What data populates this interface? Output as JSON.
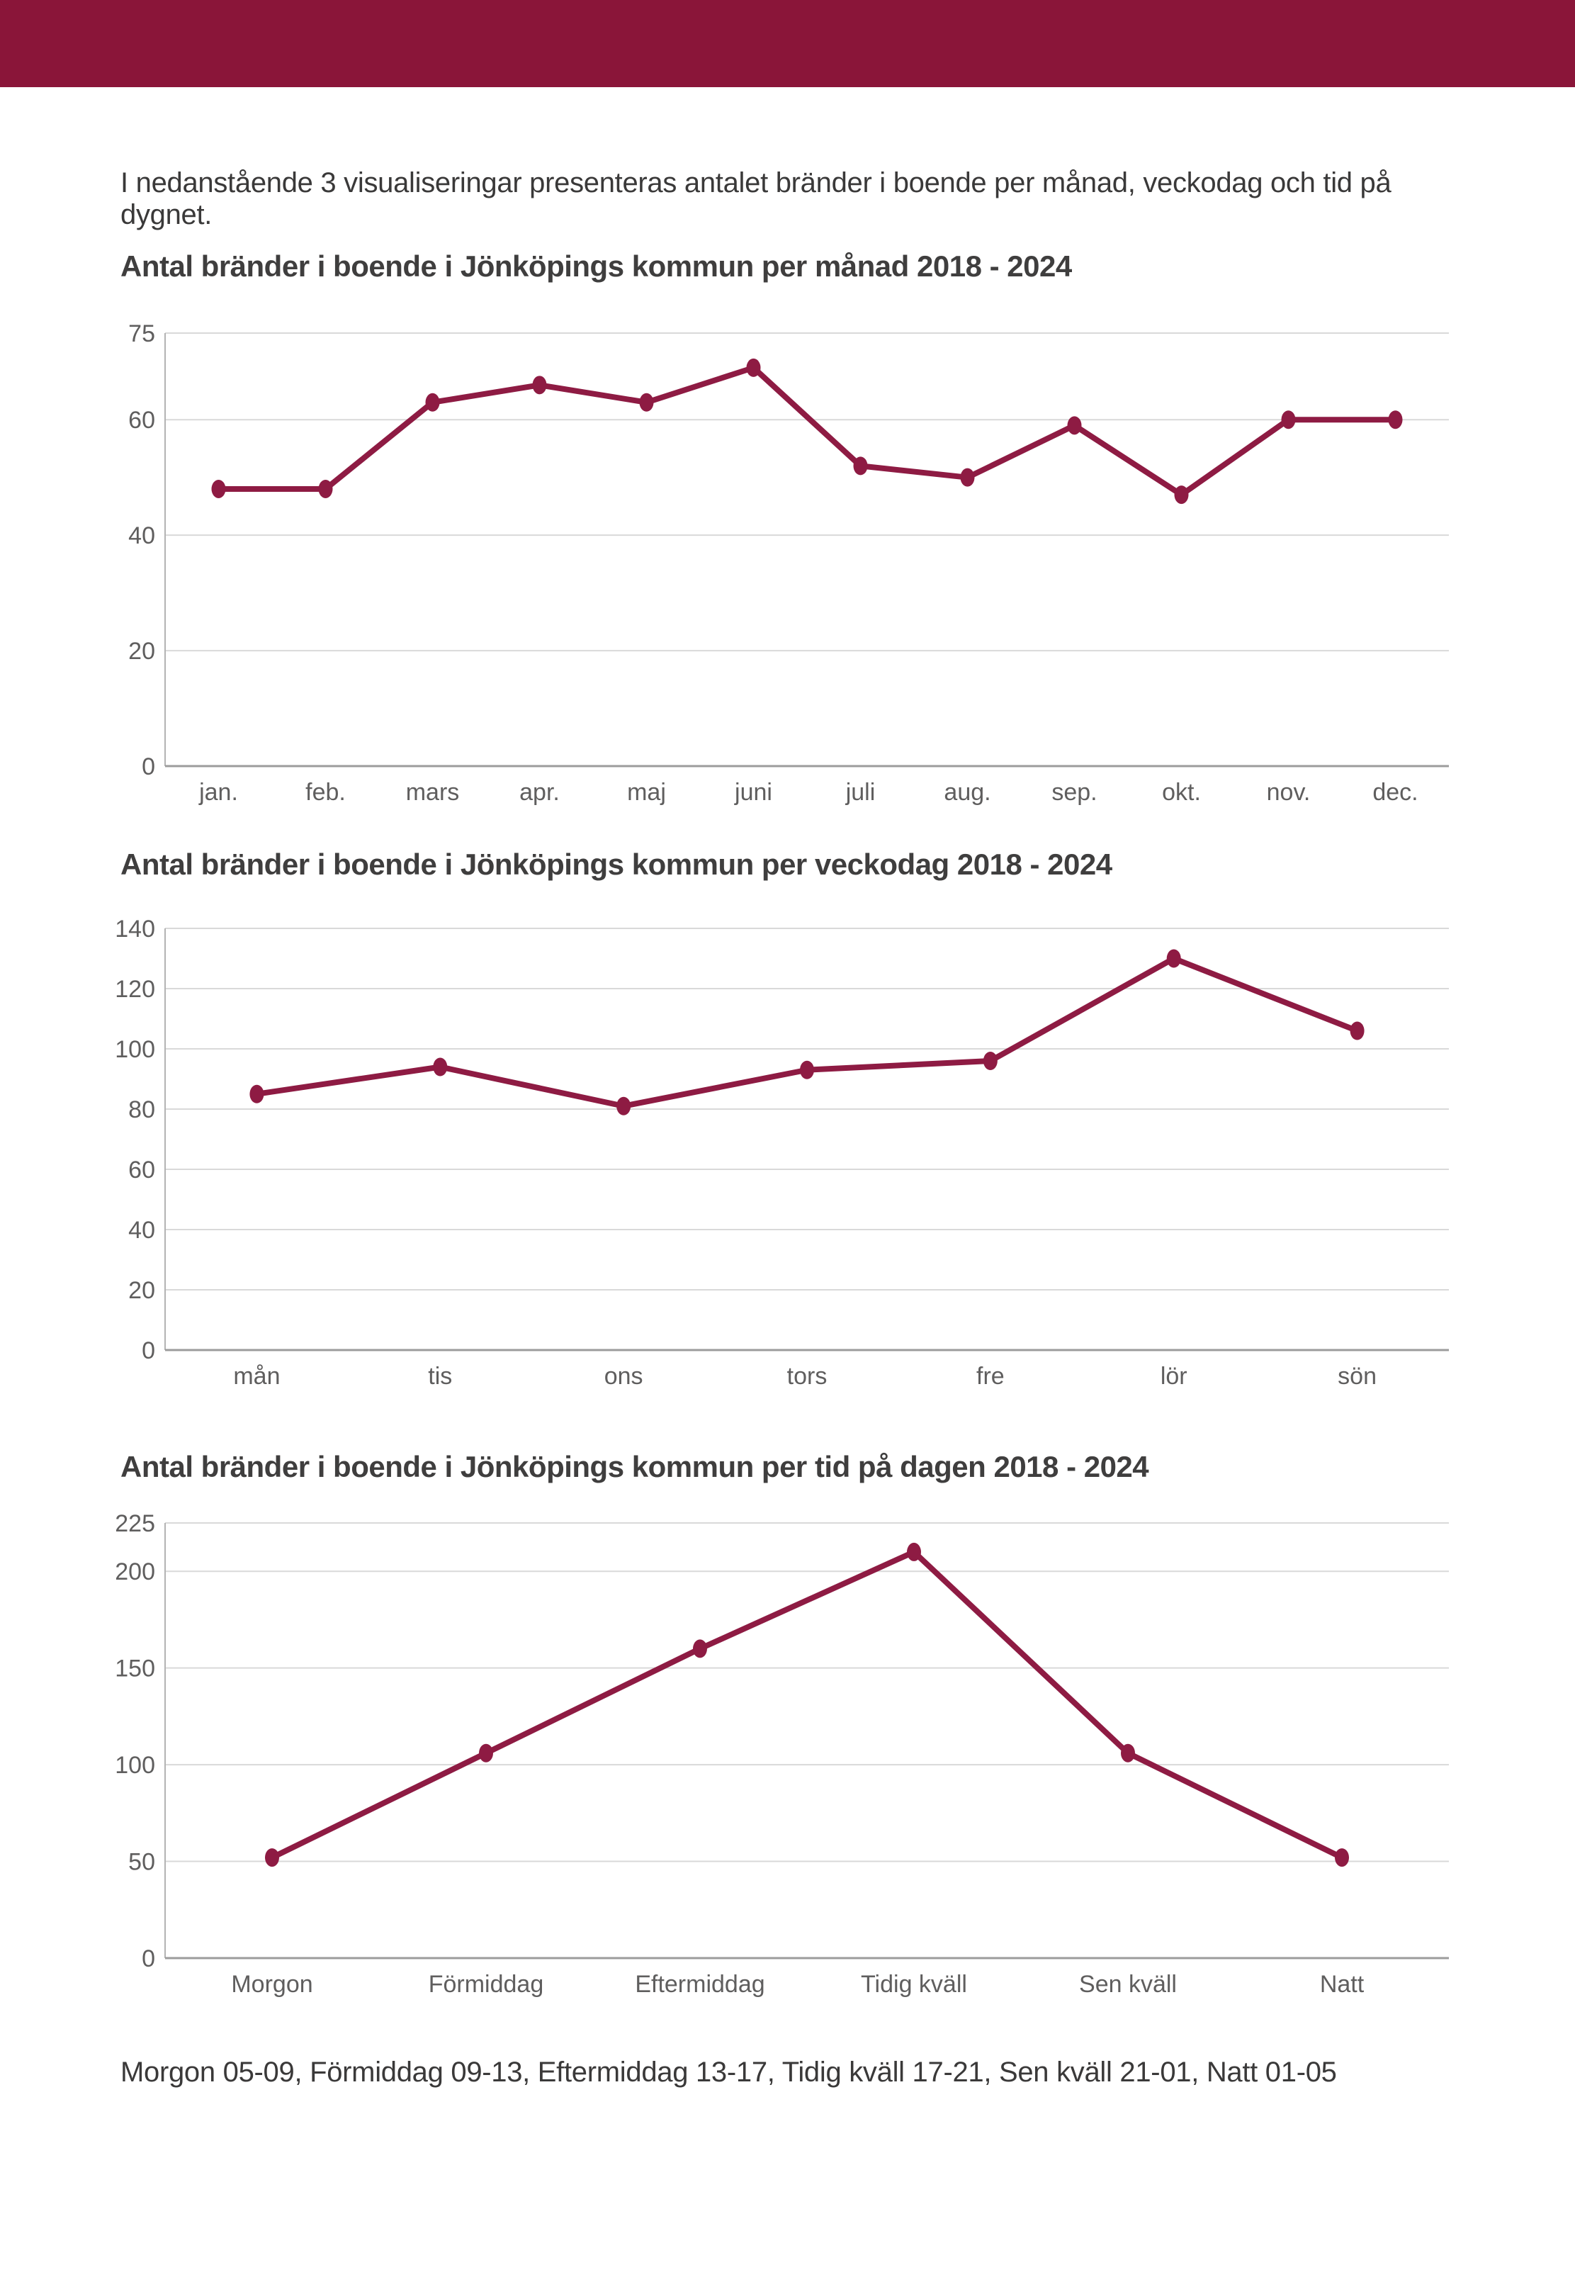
{
  "page": {
    "intro_text": "I nedanstående 3 visualiseringar presenteras antalet bränder i boende per månad, veckodag och tid på dygnet.",
    "footer_text": "Morgon 05-09, Förmiddag 09-13, Eftermiddag 13-17, Tidig kväll 17-21, Sen kväll 21-01, Natt 01-05"
  },
  "colors": {
    "header_bar": "#8a1539",
    "series_line": "#8e1b43",
    "gridline": "#d9d9d9",
    "axis_line_left": "#b3b3b3",
    "axis_line_bottom": "#9c9c9c",
    "tick_label": "#5f5e5e",
    "title_text": "#3f3e3e",
    "body_text": "#3a3939"
  },
  "chart_data": [
    {
      "type": "line",
      "title": "Antal bränder i boende i Jönköpings kommun per månad 2018 - 2024",
      "categories": [
        "jan.",
        "feb.",
        "mars",
        "apr.",
        "maj",
        "juni",
        "juli",
        "aug.",
        "sep.",
        "okt.",
        "nov.",
        "dec."
      ],
      "values": [
        48,
        48,
        63,
        66,
        63,
        69,
        52,
        50,
        59,
        47,
        60,
        60
      ],
      "xlabel": "",
      "ylabel": "",
      "ylim": [
        0,
        75
      ],
      "yticks": [
        0,
        20,
        40,
        60,
        75
      ],
      "grid": true,
      "legend": "none",
      "marker": "dot"
    },
    {
      "type": "line",
      "title": "Antal bränder i boende i Jönköpings kommun per veckodag 2018 - 2024",
      "categories": [
        "mån",
        "tis",
        "ons",
        "tors",
        "fre",
        "lör",
        "sön"
      ],
      "values": [
        85,
        94,
        81,
        93,
        96,
        130,
        106
      ],
      "xlabel": "",
      "ylabel": "",
      "ylim": [
        0,
        140
      ],
      "yticks": [
        0,
        20,
        40,
        60,
        80,
        100,
        120,
        140
      ],
      "grid": true,
      "legend": "none",
      "marker": "dot"
    },
    {
      "type": "line",
      "title": "Antal bränder i boende i Jönköpings kommun per tid på dagen 2018 - 2024",
      "categories": [
        "Morgon",
        "Förmiddag",
        "Eftermiddag",
        "Tidig kväll",
        "Sen kväll",
        "Natt"
      ],
      "values": [
        52,
        106,
        160,
        210,
        106,
        52
      ],
      "xlabel": "",
      "ylabel": "",
      "ylim": [
        0,
        225
      ],
      "yticks": [
        0,
        50,
        100,
        150,
        200,
        225
      ],
      "grid": true,
      "legend": "none",
      "marker": "dot"
    }
  ]
}
